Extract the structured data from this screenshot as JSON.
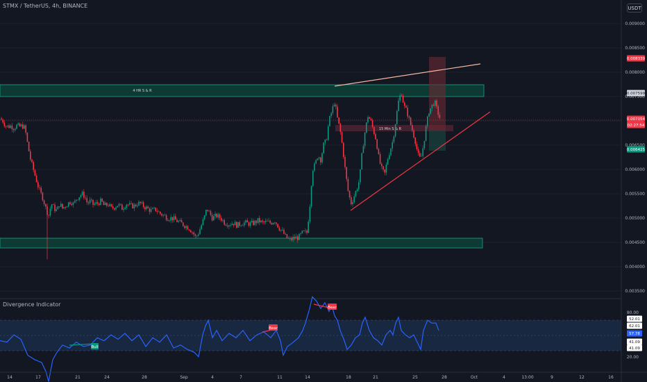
{
  "header": {
    "symbol": "STMX / TetherUS, 4h, BINANCE",
    "currency_button": "USDT"
  },
  "price_axis": {
    "ticks": [
      "0.009000",
      "0.008500",
      "0.008000",
      "0.007500",
      "0.006500",
      "0.006000",
      "0.005500",
      "0.005000",
      "0.004500",
      "0.004000",
      "0.003500"
    ],
    "tags": [
      {
        "text": "0.008339",
        "color": "#f23645"
      },
      {
        "text": "0.007599",
        "color": "#d1d4dc"
      },
      {
        "text": "0.007054",
        "color": "#f23645"
      },
      {
        "text": "02:27:54",
        "color": "#f23645"
      },
      {
        "text": "0.006425",
        "color": "#089981"
      }
    ]
  },
  "indicator": {
    "title": "Divergence Indicator",
    "ticks": [
      "80.00",
      "20.00"
    ],
    "tags": [
      {
        "text": "52.01",
        "color": "#ffffff"
      },
      {
        "text": "62.01",
        "color": "#ffffff"
      },
      {
        "text": "57.78",
        "color": "#2962ff"
      },
      {
        "text": "41.09",
        "color": "#ffffff"
      },
      {
        "text": "41.09",
        "color": "#ffffff"
      }
    ],
    "labels": [
      {
        "text": "Bull",
        "color": "#089981"
      },
      {
        "text": "Bear",
        "color": "#f23645"
      },
      {
        "text": "Bear",
        "color": "#f23645"
      }
    ]
  },
  "zones": {
    "top_label": "4 HR S & R",
    "mid_label": "15 Min S & R"
  },
  "time_axis": {
    "ticks": [
      "14",
      "17",
      "21",
      "24",
      "28",
      "Sep",
      "4",
      "7",
      "11",
      "14",
      "18",
      "21",
      "25",
      "28",
      "Oct",
      "4",
      "13:00",
      "9",
      "12",
      "16"
    ]
  },
  "colors": {
    "background": "#131722",
    "up": "#089981",
    "down": "#f23645",
    "zone": "#0d3b34",
    "zone_border": "#1b8a76",
    "wedge": "#f23645",
    "resistance": "#f7b7a3",
    "indicator_line": "#2962ff"
  },
  "chart_data": [
    {
      "type": "candlestick",
      "title": "STMX / TetherUS, 4h, BINANCE",
      "ylim": [
        0.00335,
        0.0093
      ],
      "close_path": [
        [
          0,
          0.00705
        ],
        [
          4,
          0.007
        ],
        [
          8,
          0.0069
        ],
        [
          12,
          0.00688
        ],
        [
          16,
          0.0069
        ],
        [
          20,
          0.00685
        ],
        [
          24,
          0.0069
        ],
        [
          28,
          0.00688
        ],
        [
          32,
          0.0069
        ],
        [
          36,
          0.00685
        ],
        [
          40,
          0.0065
        ],
        [
          44,
          0.0062
        ],
        [
          50,
          0.0059
        ],
        [
          56,
          0.0056
        ],
        [
          62,
          0.0054
        ],
        [
          66,
          0.0052
        ],
        [
          70,
          0.00505
        ],
        [
          74,
          0.0053
        ],
        [
          78,
          0.0052
        ],
        [
          82,
          0.00515
        ],
        [
          86,
          0.0053
        ],
        [
          90,
          0.0052
        ],
        [
          94,
          0.00525
        ],
        [
          98,
          0.0053
        ],
        [
          102,
          0.00535
        ],
        [
          106,
          0.00528
        ],
        [
          110,
          0.0054
        ],
        [
          114,
          0.00545
        ],
        [
          118,
          0.0055
        ],
        [
          122,
          0.00545
        ],
        [
          126,
          0.0053
        ],
        [
          130,
          0.00535
        ],
        [
          134,
          0.00528
        ],
        [
          140,
          0.0053
        ],
        [
          146,
          0.00535
        ],
        [
          150,
          0.00525
        ],
        [
          156,
          0.00528
        ],
        [
          160,
          0.0052
        ],
        [
          164,
          0.00522
        ],
        [
          170,
          0.00528
        ],
        [
          176,
          0.0052
        ],
        [
          182,
          0.0053
        ],
        [
          188,
          0.00525
        ],
        [
          194,
          0.00525
        ],
        [
          198,
          0.0053
        ],
        [
          202,
          0.0053
        ],
        [
          206,
          0.00525
        ],
        [
          212,
          0.0052
        ],
        [
          218,
          0.00515
        ],
        [
          224,
          0.00518
        ],
        [
          230,
          0.0051
        ],
        [
          236,
          0.00505
        ],
        [
          242,
          0.005
        ],
        [
          248,
          0.005
        ],
        [
          254,
          0.00495
        ],
        [
          260,
          0.0049
        ],
        [
          266,
          0.00485
        ],
        [
          272,
          0.0048
        ],
        [
          278,
          0.0047
        ],
        [
          282,
          0.0046
        ],
        [
          286,
          0.0047
        ],
        [
          290,
          0.00485
        ],
        [
          294,
          0.005
        ],
        [
          298,
          0.0052
        ],
        [
          302,
          0.0051
        ],
        [
          306,
          0.005
        ],
        [
          312,
          0.00505
        ],
        [
          318,
          0.005
        ],
        [
          324,
          0.0049
        ],
        [
          330,
          0.00488
        ],
        [
          336,
          0.0049
        ],
        [
          342,
          0.00485
        ],
        [
          348,
          0.0049
        ],
        [
          354,
          0.0049
        ],
        [
          360,
          0.00488
        ],
        [
          366,
          0.0049
        ],
        [
          372,
          0.00495
        ],
        [
          378,
          0.0049
        ],
        [
          384,
          0.00492
        ],
        [
          390,
          0.0049
        ],
        [
          396,
          0.00495
        ],
        [
          402,
          0.0048
        ],
        [
          408,
          0.0047
        ],
        [
          412,
          0.0046
        ],
        [
          418,
          0.00455
        ],
        [
          424,
          0.0046
        ],
        [
          430,
          0.0046
        ],
        [
          436,
          0.0047
        ],
        [
          442,
          0.0047
        ],
        [
          446,
          0.0052
        ],
        [
          450,
          0.006
        ],
        [
          454,
          0.0061
        ],
        [
          458,
          0.0063
        ],
        [
          462,
          0.0062
        ],
        [
          466,
          0.0065
        ],
        [
          470,
          0.0066
        ],
        [
          474,
          0.007
        ],
        [
          478,
          0.0072
        ],
        [
          482,
          0.0074
        ],
        [
          486,
          0.00705
        ],
        [
          490,
          0.0068
        ],
        [
          494,
          0.0064
        ],
        [
          498,
          0.0059
        ],
        [
          502,
          0.0055
        ],
        [
          506,
          0.0053
        ],
        [
          510,
          0.00545
        ],
        [
          514,
          0.0056
        ],
        [
          518,
          0.0058
        ],
        [
          522,
          0.0064
        ],
        [
          526,
          0.0068
        ],
        [
          530,
          0.0071
        ],
        [
          534,
          0.007
        ],
        [
          538,
          0.0068
        ],
        [
          542,
          0.0066
        ],
        [
          546,
          0.0062
        ],
        [
          550,
          0.006
        ],
        [
          554,
          0.0059
        ],
        [
          558,
          0.0062
        ],
        [
          562,
          0.0064
        ],
        [
          566,
          0.0066
        ],
        [
          570,
          0.007
        ],
        [
          574,
          0.0074
        ],
        [
          578,
          0.0076
        ],
        [
          582,
          0.0073
        ],
        [
          586,
          0.0072
        ],
        [
          590,
          0.007
        ],
        [
          594,
          0.0068
        ],
        [
          598,
          0.0066
        ],
        [
          602,
          0.0063
        ],
        [
          606,
          0.0062
        ],
        [
          610,
          0.0065
        ],
        [
          614,
          0.0069
        ],
        [
          618,
          0.0072
        ],
        [
          622,
          0.0073
        ],
        [
          626,
          0.0074
        ],
        [
          630,
          0.0072
        ],
        [
          634,
          0.00705
        ]
      ]
    },
    {
      "type": "line",
      "title": "Divergence Indicator",
      "ylim": [
        20,
        80
      ],
      "points": [
        [
          0,
          48
        ],
        [
          10,
          47
        ],
        [
          20,
          52
        ],
        [
          30,
          49
        ],
        [
          40,
          38
        ],
        [
          50,
          35
        ],
        [
          60,
          33
        ],
        [
          66,
          27
        ],
        [
          70,
          20
        ],
        [
          76,
          35
        ],
        [
          82,
          40
        ],
        [
          90,
          45
        ],
        [
          100,
          43
        ],
        [
          110,
          47
        ],
        [
          120,
          44
        ],
        [
          130,
          45
        ],
        [
          140,
          50
        ],
        [
          150,
          48
        ],
        [
          160,
          52
        ],
        [
          170,
          49
        ],
        [
          180,
          53
        ],
        [
          190,
          48
        ],
        [
          200,
          52
        ],
        [
          210,
          44
        ],
        [
          220,
          50
        ],
        [
          230,
          47
        ],
        [
          240,
          52
        ],
        [
          250,
          43
        ],
        [
          260,
          45
        ],
        [
          270,
          42
        ],
        [
          280,
          40
        ],
        [
          286,
          37
        ],
        [
          292,
          52
        ],
        [
          296,
          58
        ],
        [
          300,
          62
        ],
        [
          306,
          50
        ],
        [
          312,
          55
        ],
        [
          320,
          48
        ],
        [
          330,
          53
        ],
        [
          340,
          50
        ],
        [
          350,
          55
        ],
        [
          360,
          48
        ],
        [
          370,
          52
        ],
        [
          380,
          54
        ],
        [
          390,
          50
        ],
        [
          398,
          55
        ],
        [
          404,
          48
        ],
        [
          408,
          38
        ],
        [
          414,
          44
        ],
        [
          420,
          46
        ],
        [
          430,
          50
        ],
        [
          436,
          55
        ],
        [
          440,
          60
        ],
        [
          446,
          70
        ],
        [
          450,
          78
        ],
        [
          456,
          75
        ],
        [
          462,
          70
        ],
        [
          468,
          74
        ],
        [
          474,
          68
        ],
        [
          478,
          72
        ],
        [
          482,
          65
        ],
        [
          486,
          62
        ],
        [
          490,
          55
        ],
        [
          496,
          48
        ],
        [
          500,
          42
        ],
        [
          506,
          45
        ],
        [
          512,
          50
        ],
        [
          518,
          52
        ],
        [
          522,
          60
        ],
        [
          526,
          64
        ],
        [
          532,
          55
        ],
        [
          538,
          50
        ],
        [
          544,
          48
        ],
        [
          550,
          45
        ],
        [
          556,
          52
        ],
        [
          562,
          55
        ],
        [
          566,
          52
        ],
        [
          570,
          60
        ],
        [
          574,
          64
        ],
        [
          578,
          55
        ],
        [
          584,
          52
        ],
        [
          590,
          50
        ],
        [
          596,
          52
        ],
        [
          600,
          48
        ],
        [
          606,
          42
        ],
        [
          610,
          55
        ],
        [
          616,
          62
        ],
        [
          622,
          60
        ],
        [
          628,
          60
        ],
        [
          632,
          55
        ]
      ]
    }
  ]
}
